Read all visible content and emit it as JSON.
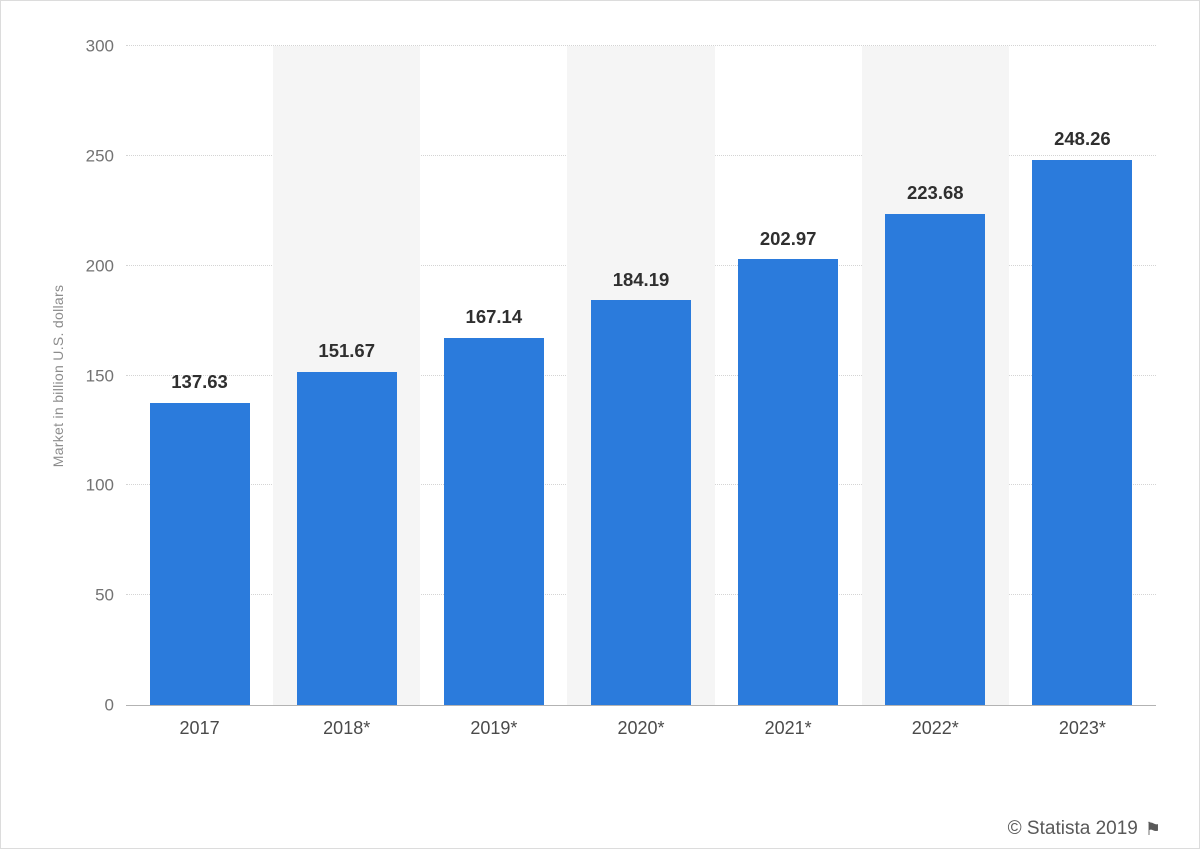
{
  "chart_data": {
    "type": "bar",
    "categories": [
      "2017",
      "2018*",
      "2019*",
      "2020*",
      "2021*",
      "2022*",
      "2023*"
    ],
    "values": [
      137.63,
      151.67,
      167.14,
      184.19,
      202.97,
      223.68,
      248.26
    ],
    "title": "",
    "xlabel": "",
    "ylabel": "Market in billion U.S. dollars",
    "ylim": [
      0,
      300
    ],
    "yticks": [
      0,
      50,
      100,
      150,
      200,
      250,
      300
    ],
    "grid": true,
    "legend": false,
    "bar_color": "#2b7bdc",
    "band_color": "#f5f5f5",
    "alternating_bands": true,
    "value_label_color": "#2f2f2f"
  },
  "footer": {
    "text": "© Statista 2019",
    "flag_glyph": "⚑",
    "flag_icon": "flag-icon"
  }
}
